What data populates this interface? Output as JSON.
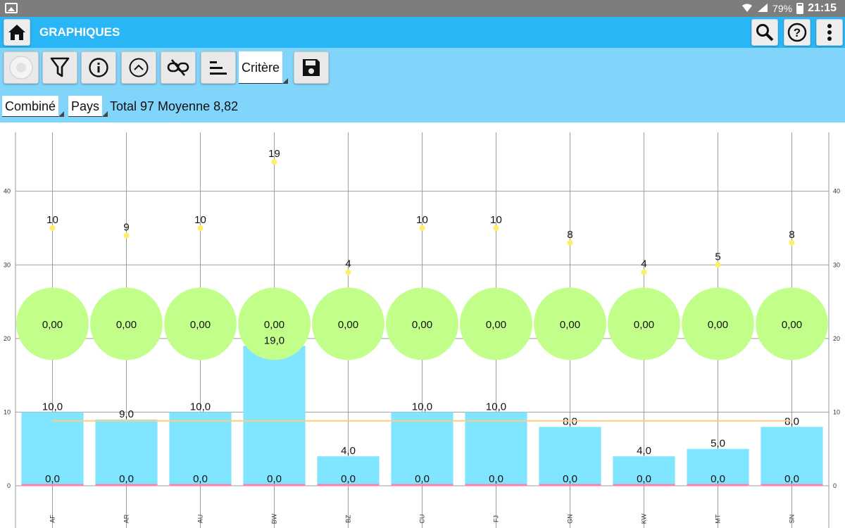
{
  "status_bar": {
    "battery": "79%",
    "time": "21:15"
  },
  "app_bar": {
    "title": "GRAPHIQUES"
  },
  "toolbar": {
    "criteria_dropdown": "Critère",
    "combine_dropdown": "Combiné",
    "country_dropdown": "Pays",
    "summary": "Total 97 Moyenne 8,82"
  },
  "colors": {
    "status_bar": "#7d7d7d",
    "app_bar": "#29b6f6",
    "toolbar": "#81d4fa",
    "bar": "#80e5ff",
    "bubble": "#c2ff8a",
    "point": "#ffee66",
    "average_line": "#ffcc80",
    "zero_line": "#ff80ab"
  },
  "chart_data": {
    "type": "bar",
    "categories": [
      "AF",
      "AR",
      "AU",
      "BW",
      "BZ",
      "CU",
      "FJ",
      "GN",
      "KW",
      "MT",
      "SN"
    ],
    "series": [
      {
        "values": [
          10,
          9,
          10,
          19,
          4,
          10,
          10,
          8,
          4,
          5,
          8
        ],
        "labels": [
          "10,0",
          "9,0",
          "10,0",
          "19,0",
          "4,0",
          "10,0",
          "10,0",
          "8,0",
          "4,0",
          "5,0",
          "8,0"
        ]
      },
      {
        "values": [
          0,
          0,
          0,
          0,
          0,
          0,
          0,
          0,
          0,
          0,
          0
        ],
        "labels": [
          "0,0",
          "0,0",
          "0,0",
          "0,0",
          "0,0",
          "0,0",
          "0,0",
          "0,0",
          "0,0",
          "0,0",
          "0,0"
        ]
      },
      {
        "values": [
          0,
          0,
          0,
          0,
          0,
          0,
          0,
          0,
          0,
          0,
          0
        ],
        "labels": [
          "0,00",
          "0,00",
          "0,00",
          "0,00",
          "0,00",
          "0,00",
          "0,00",
          "0,00",
          "0,00",
          "0,00",
          "0,00"
        ]
      },
      {
        "values": [
          10,
          9,
          10,
          19,
          4,
          10,
          10,
          8,
          4,
          5,
          8
        ],
        "labels": [
          "10",
          "9",
          "10",
          "19",
          "4",
          "10",
          "10",
          "8",
          "4",
          "5",
          "8"
        ]
      }
    ],
    "average": 8.82,
    "yticks": [
      0,
      10,
      20,
      30,
      40
    ],
    "ylim": [
      0,
      48
    ],
    "grid": true
  }
}
